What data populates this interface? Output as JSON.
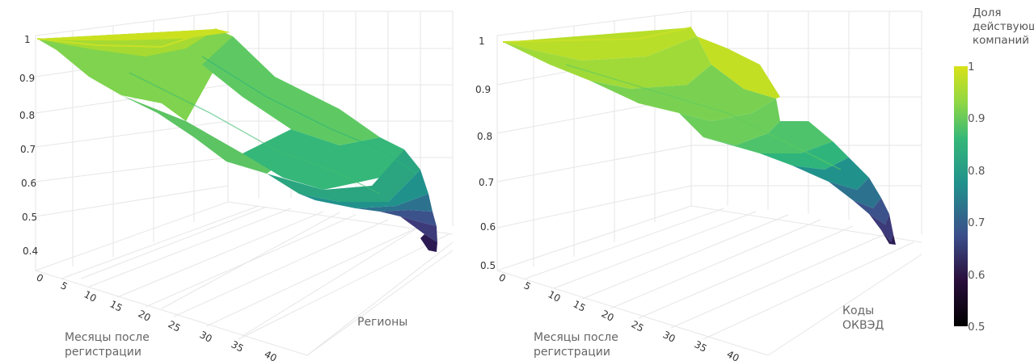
{
  "chart_data": [
    {
      "type": "surface",
      "x_axis": {
        "title": [
          "Месяцы после",
          "регистрации"
        ],
        "ticks": [
          0,
          5,
          10,
          15,
          20,
          25,
          30,
          35,
          40
        ]
      },
      "y_axis": {
        "title": [
          "Регионы"
        ]
      },
      "z_axis": {
        "ticks": [
          0.4,
          0.5,
          0.6,
          0.7,
          0.8,
          0.9,
          1
        ],
        "range": [
          0.38,
          1.0
        ]
      },
      "surface": {
        "months": [
          0,
          5,
          10,
          15,
          20,
          25,
          30,
          35,
          40
        ],
        "share_near_edge": [
          1.0,
          0.97,
          0.92,
          0.86,
          0.81,
          0.75,
          0.7,
          0.66,
          0.6
        ],
        "share_far_edge": [
          1.0,
          0.99,
          0.96,
          0.92,
          0.87,
          0.82,
          0.75,
          0.62,
          0.4
        ]
      },
      "grid": true
    },
    {
      "type": "surface",
      "x_axis": {
        "title": [
          "Месяцы после",
          "регистрации"
        ],
        "ticks": [
          0,
          5,
          10,
          15,
          20,
          25,
          30,
          35,
          40
        ]
      },
      "y_axis": {
        "title": [
          "Коды",
          "ОКВЭД"
        ]
      },
      "z_axis": {
        "ticks": [
          0.5,
          0.6,
          0.7,
          0.8,
          0.9,
          1
        ],
        "range": [
          0.5,
          1.0
        ]
      },
      "surface": {
        "months": [
          0,
          5,
          10,
          15,
          20,
          25,
          30,
          35,
          40
        ],
        "share_near_edge": [
          1.0,
          0.99,
          0.97,
          0.93,
          0.89,
          0.85,
          0.81,
          0.79,
          0.77
        ],
        "share_far_edge": [
          1.0,
          0.99,
          0.98,
          0.96,
          0.92,
          0.86,
          0.8,
          0.7,
          0.58
        ]
      },
      "grid": true
    }
  ],
  "colorbar": {
    "title": [
      "Доля",
      "действующих",
      "компаний"
    ],
    "ticks": [
      1,
      0.9,
      0.8,
      0.7,
      0.6,
      0.5
    ],
    "range": [
      0.5,
      1.0
    ],
    "colors": [
      "#000000",
      "#2b0f3f",
      "#3b528b",
      "#21918c",
      "#5ec962",
      "#b8de29",
      "#fde725"
    ],
    "placement": "right"
  }
}
